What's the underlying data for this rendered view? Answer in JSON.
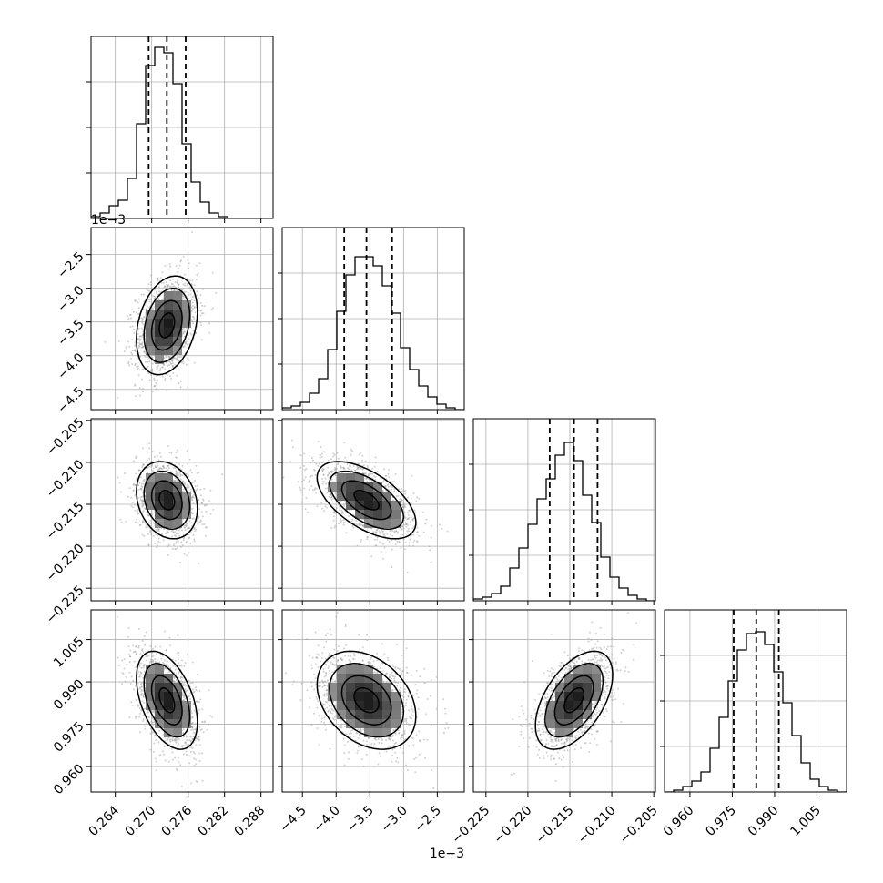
{
  "chart_data": {
    "type": "corner",
    "parameters": [
      {
        "range": [
          0.26,
          0.29
        ],
        "ticks": [
          0.264,
          0.27,
          0.276,
          0.282,
          0.288
        ],
        "tick_labels": [
          "0.264",
          "0.270",
          "0.276",
          "0.282",
          "0.288"
        ],
        "quantiles": [
          0.2695,
          0.2725,
          0.2756
        ],
        "offset_label": ""
      },
      {
        "range": [
          -4.8,
          -2.1
        ],
        "ticks": [
          -4.5,
          -4.0,
          -3.5,
          -3.0,
          -2.5
        ],
        "tick_labels": [
          "−4.5",
          "−4.0",
          "−3.5",
          "−3.0",
          "−2.5"
        ],
        "quantiles": [
          -3.88,
          -3.55,
          -3.17
        ],
        "offset_label": "1e−3"
      },
      {
        "range": [
          -0.2265,
          -0.2048
        ],
        "ticks": [
          -0.225,
          -0.22,
          -0.215,
          -0.21,
          -0.205
        ],
        "tick_labels": [
          "−0.225",
          "−0.220",
          "−0.215",
          "−0.210",
          "−0.205"
        ],
        "quantiles": [
          -0.2174,
          -0.2145,
          -0.2117
        ],
        "offset_label": ""
      },
      {
        "range": [
          0.951,
          1.0155
        ],
        "ticks": [
          0.96,
          0.975,
          0.99,
          1.005
        ],
        "tick_labels": [
          "0.960",
          "0.975",
          "0.990",
          "1.005"
        ],
        "quantiles": [
          0.9755,
          0.9835,
          0.9915
        ],
        "offset_label": ""
      }
    ],
    "histograms": [
      [
        0.01,
        0.03,
        0.07,
        0.1,
        0.22,
        0.52,
        0.84,
        0.94,
        0.91,
        0.74,
        0.41,
        0.2,
        0.09,
        0.03,
        0.01,
        0.0,
        0.0,
        0.0,
        0.0,
        0.0
      ],
      [
        0.01,
        0.02,
        0.04,
        0.09,
        0.17,
        0.33,
        0.54,
        0.74,
        0.84,
        0.84,
        0.79,
        0.68,
        0.53,
        0.34,
        0.22,
        0.13,
        0.07,
        0.03,
        0.01,
        0.0
      ],
      [
        0.01,
        0.02,
        0.04,
        0.08,
        0.18,
        0.29,
        0.42,
        0.56,
        0.67,
        0.8,
        0.87,
        0.77,
        0.58,
        0.43,
        0.24,
        0.13,
        0.07,
        0.03,
        0.01,
        0.0
      ],
      [
        0.0,
        0.01,
        0.03,
        0.06,
        0.11,
        0.24,
        0.41,
        0.61,
        0.78,
        0.87,
        0.88,
        0.81,
        0.66,
        0.49,
        0.31,
        0.16,
        0.07,
        0.03,
        0.01,
        0.0
      ]
    ],
    "joint": [
      {
        "row": 1,
        "col": 0,
        "mean": [
          0.2725,
          -3.55
        ],
        "sd": [
          0.0024,
          0.35
        ],
        "rho": 0.28
      },
      {
        "row": 2,
        "col": 0,
        "mean": [
          0.2725,
          -0.2145
        ],
        "sd": [
          0.0024,
          0.0022
        ],
        "rho": -0.22
      },
      {
        "row": 2,
        "col": 1,
        "mean": [
          -3.55,
          -0.2145
        ],
        "sd": [
          0.35,
          0.0022
        ],
        "rho": -0.58
      },
      {
        "row": 3,
        "col": 0,
        "mean": [
          0.2725,
          0.9835
        ],
        "sd": [
          0.0024,
          0.0083
        ],
        "rho": -0.45
      },
      {
        "row": 3,
        "col": 1,
        "mean": [
          -3.55,
          0.9835
        ],
        "sd": [
          0.35,
          0.0083
        ],
        "rho": -0.32
      },
      {
        "row": 3,
        "col": 2,
        "mean": [
          -0.2145,
          0.9835
        ],
        "sd": [
          0.0022,
          0.0083
        ],
        "rho": 0.52
      }
    ],
    "contour_levels_sigma": [
      0.5,
      1.0,
      1.5,
      2.0
    ],
    "grid": true,
    "quantile_line_style": "dashed"
  }
}
